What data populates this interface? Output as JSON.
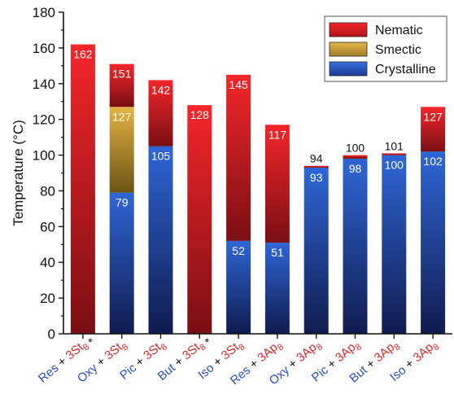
{
  "chart_data": {
    "type": "bar",
    "subtype": "stacked-floating",
    "ylabel": "Temperature (°C)",
    "xlabel": "",
    "ylim": [
      0,
      180
    ],
    "yticks": [
      0,
      20,
      40,
      60,
      80,
      100,
      120,
      140,
      160,
      180
    ],
    "legend": {
      "placement": "top-right",
      "entries": [
        {
          "name": "Nematic",
          "color": "#e8262a"
        },
        {
          "name": "Smectic",
          "color": "#d4a83a"
        },
        {
          "name": "Crystalline",
          "color": "#2d5bbd"
        }
      ]
    },
    "categories": [
      {
        "host": "Res",
        "guest": "3St",
        "sub": "8",
        "guest_color": "#e0262a",
        "asterisk": "*"
      },
      {
        "host": "Oxy",
        "guest": "3St",
        "sub": "8",
        "guest_color": "#e0262a",
        "asterisk": ""
      },
      {
        "host": "Pic",
        "guest": "3St",
        "sub": "8",
        "guest_color": "#e0262a",
        "asterisk": ""
      },
      {
        "host": "But",
        "guest": "3St",
        "sub": "8",
        "guest_color": "#e0262a",
        "asterisk": "*"
      },
      {
        "host": "Iso",
        "guest": "3St",
        "sub": "8",
        "guest_color": "#e0262a",
        "asterisk": ""
      },
      {
        "host": "Res",
        "guest": "3Ap",
        "sub": "8",
        "guest_color": "#e0262a",
        "asterisk": ""
      },
      {
        "host": "Oxy",
        "guest": "3Ap",
        "sub": "8",
        "guest_color": "#e0262a",
        "asterisk": ""
      },
      {
        "host": "Pic",
        "guest": "3Ap",
        "sub": "8",
        "guest_color": "#e0262a",
        "asterisk": ""
      },
      {
        "host": "But",
        "guest": "3Ap",
        "sub": "8",
        "guest_color": "#e0262a",
        "asterisk": ""
      },
      {
        "host": "Iso",
        "guest": "3Ap",
        "sub": "8",
        "guest_color": "#e0262a",
        "asterisk": ""
      }
    ],
    "host_color": "#2a4fbf",
    "series": [
      {
        "name": "Crystalline",
        "values": [
          null,
          79,
          105,
          null,
          52,
          51,
          93,
          98,
          100,
          102
        ]
      },
      {
        "name": "Smectic",
        "values": [
          null,
          127,
          null,
          null,
          null,
          null,
          null,
          null,
          null,
          null
        ]
      },
      {
        "name": "Nematic",
        "values": [
          162,
          151,
          142,
          128,
          145,
          117,
          94,
          100,
          101,
          127
        ]
      }
    ],
    "data_labels": [
      [
        {
          "text": "162",
          "value": 162,
          "pos": "inside",
          "color": "#ffffff"
        }
      ],
      [
        {
          "text": "151",
          "value": 151,
          "pos": "inside",
          "color": "#ffffff"
        },
        {
          "text": "127",
          "value": 127,
          "pos": "inside",
          "color": "#ffffff"
        },
        {
          "text": "79",
          "value": 79,
          "pos": "inside",
          "color": "#ffffff"
        }
      ],
      [
        {
          "text": "142",
          "value": 142,
          "pos": "inside",
          "color": "#ffffff"
        },
        {
          "text": "105",
          "value": 105,
          "pos": "inside",
          "color": "#ffffff"
        }
      ],
      [
        {
          "text": "128",
          "value": 128,
          "pos": "inside",
          "color": "#ffffff"
        }
      ],
      [
        {
          "text": "145",
          "value": 145,
          "pos": "inside",
          "color": "#ffffff"
        },
        {
          "text": "52",
          "value": 52,
          "pos": "inside",
          "color": "#ffffff"
        }
      ],
      [
        {
          "text": "117",
          "value": 117,
          "pos": "inside",
          "color": "#ffffff"
        },
        {
          "text": "51",
          "value": 51,
          "pos": "inside",
          "color": "#ffffff"
        }
      ],
      [
        {
          "text": "94",
          "value": 94,
          "pos": "above",
          "color": "#111111"
        },
        {
          "text": "93",
          "value": 93,
          "pos": "inside",
          "color": "#ffffff"
        }
      ],
      [
        {
          "text": "100",
          "value": 100,
          "pos": "above",
          "color": "#111111"
        },
        {
          "text": "98",
          "value": 98,
          "pos": "inside",
          "color": "#ffffff"
        }
      ],
      [
        {
          "text": "101",
          "value": 101,
          "pos": "above",
          "color": "#111111"
        },
        {
          "text": "100",
          "value": 100,
          "pos": "inside",
          "color": "#ffffff"
        }
      ],
      [
        {
          "text": "127",
          "value": 127,
          "pos": "inside",
          "color": "#ffffff"
        },
        {
          "text": "102",
          "value": 102,
          "pos": "inside",
          "color": "#ffffff"
        }
      ]
    ]
  }
}
